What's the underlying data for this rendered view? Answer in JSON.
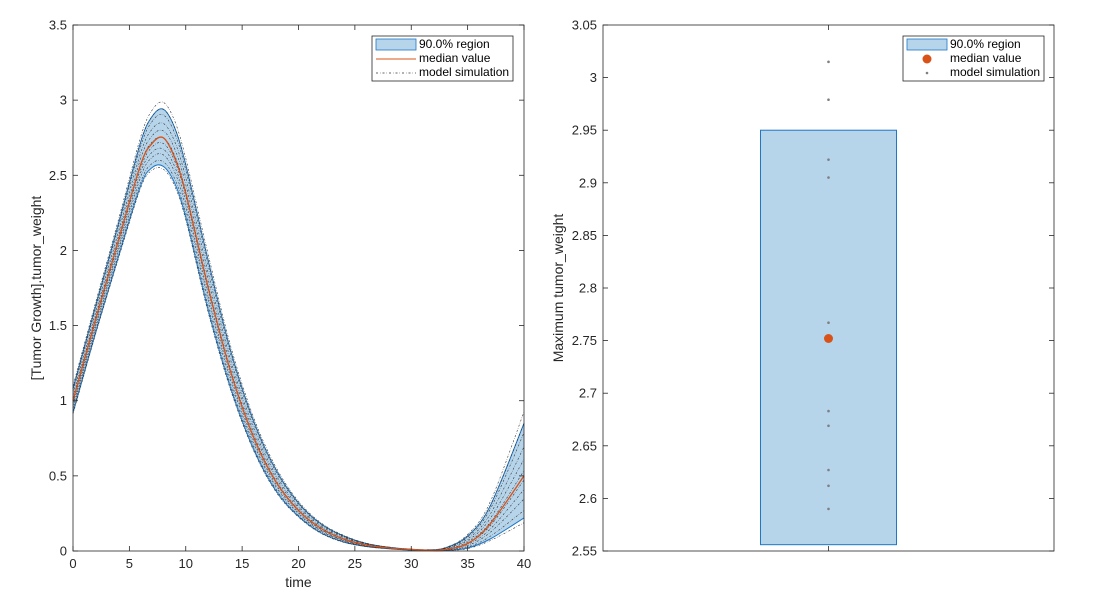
{
  "colors": {
    "band_fill": "#b6d4ea",
    "band_edge": "#1f77c7",
    "median": "#d95319",
    "sim": "#333333",
    "sim_point": "#7f7f7f"
  },
  "chart_data": [
    {
      "type": "area",
      "xlabel": "time",
      "ylabel": "[Tumor Growth].tumor_weight",
      "xlim": [
        0,
        40
      ],
      "ylim": [
        0,
        3.5
      ],
      "xticks": [
        "0",
        "5",
        "10",
        "15",
        "20",
        "25",
        "30",
        "35",
        "40"
      ],
      "yticks": [
        "0",
        "0.5",
        "1",
        "1.5",
        "2",
        "2.5",
        "3",
        "3.5"
      ],
      "legend": [
        "90.0% region",
        "median value",
        "model simulation"
      ],
      "legend_position": "top-right",
      "x": [
        0,
        2,
        4,
        6,
        7,
        8,
        9,
        10,
        12,
        14,
        16,
        18,
        20,
        22,
        24,
        26,
        28,
        30,
        31.5,
        33,
        35,
        37,
        40
      ],
      "series": [
        {
          "name": "median value",
          "values": [
            1.0,
            1.54,
            2.06,
            2.57,
            2.71,
            2.75,
            2.62,
            2.38,
            1.75,
            1.19,
            0.76,
            0.46,
            0.27,
            0.15,
            0.08,
            0.04,
            0.02,
            0.01,
            0.005,
            0.01,
            0.05,
            0.18,
            0.5
          ]
        },
        {
          "name": "90.0% region upper",
          "values": [
            1.08,
            1.63,
            2.17,
            2.72,
            2.89,
            2.94,
            2.82,
            2.57,
            1.93,
            1.33,
            0.87,
            0.54,
            0.32,
            0.18,
            0.1,
            0.05,
            0.025,
            0.012,
            0.008,
            0.02,
            0.1,
            0.3,
            0.85
          ]
        },
        {
          "name": "90.0% region lower",
          "values": [
            0.92,
            1.45,
            1.95,
            2.43,
            2.55,
            2.56,
            2.45,
            2.22,
            1.6,
            1.08,
            0.68,
            0.4,
            0.23,
            0.12,
            0.06,
            0.03,
            0.015,
            0.006,
            0.003,
            0.003,
            0.02,
            0.08,
            0.22
          ]
        }
      ]
    },
    {
      "type": "scatter",
      "xlabel": "",
      "ylabel": "Maximum tumor_weight",
      "ylim": [
        2.55,
        3.05
      ],
      "yticks": [
        "2.55",
        "2.6",
        "2.65",
        "2.7",
        "2.75",
        "2.8",
        "2.85",
        "2.9",
        "2.95",
        "3",
        "3.05"
      ],
      "legend": [
        "90.0% region",
        "median value",
        "model simulation"
      ],
      "legend_position": "top-right",
      "region": [
        2.556,
        2.95
      ],
      "median": 2.752,
      "simulations": [
        3.015,
        2.979,
        2.922,
        2.905,
        2.767,
        2.683,
        2.669,
        2.627,
        2.612,
        2.59
      ]
    }
  ]
}
